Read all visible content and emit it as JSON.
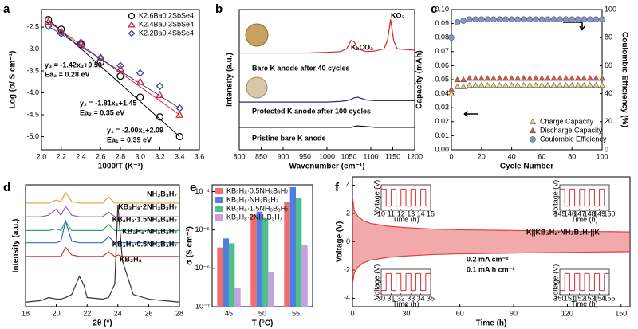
{
  "chart_data": [
    {
      "type": "scatter",
      "panel": "a",
      "xlabel": "1000/T (K⁻¹)",
      "ylabel": "Log (σ/ S cm⁻¹)",
      "x": [
        2.07,
        2.2,
        2.4,
        2.6,
        2.8,
        3.0,
        3.2,
        3.4
      ],
      "xlim": [
        2.0,
        3.6
      ],
      "xticks": [
        {
          "value": 2.0,
          "label": "2.0"
        },
        2.2,
        2.4,
        2.6,
        2.8,
        {
          "value": 3.0,
          "label": "3.0"
        },
        3.2,
        3.4,
        3.6
      ],
      "ylim": [
        -5.3,
        -2.1
      ],
      "yticks": [
        {
          "value": -5.0,
          "label": "-5.0"
        },
        -4.5,
        {
          "value": -4.0,
          "label": "-4.0"
        },
        -3.5,
        {
          "value": -3.0,
          "label": "-3.0"
        },
        -2.5
      ],
      "fit_lines": true,
      "legend": "upper right",
      "series": [
        {
          "name": "K2.6Ba0.2SbSe4",
          "color": "#000000",
          "marker": "circle",
          "values": [
            -2.33,
            -2.55,
            -2.9,
            -3.3,
            -3.62,
            -4.1,
            -4.55,
            -5.0
          ]
        },
        {
          "name": "K2.4Ba0.3SbSe4",
          "color": "#e02828",
          "marker": "triangle",
          "values": [
            -2.38,
            -2.6,
            -2.88,
            -3.2,
            -3.45,
            -3.75,
            -4.05,
            -4.5
          ]
        },
        {
          "name": "K2.2Ba0.4SbSe4",
          "color": "#3a48a0",
          "marker": "diamond",
          "values": [
            -2.48,
            -2.65,
            -2.85,
            -3.2,
            -3.38,
            -3.55,
            -3.85,
            -4.35
          ]
        }
      ],
      "annotations": [
        {
          "text": "y₃ = -1.42x₃+0.50",
          "color": "#3a48a0"
        },
        {
          "text": "Ea₃ = 0.28 eV",
          "color": "#3a48a0"
        },
        {
          "text": "y₂ = -1.81x₂+1.45",
          "color": "#e02828"
        },
        {
          "text": "Ea₂ = 0.35 eV",
          "color": "#e02828"
        },
        {
          "text": "y₁ = -2.00x₁+2.09",
          "color": "#000000"
        },
        {
          "text": "Ea₁ = 0.39 eV",
          "color": "#000000"
        }
      ]
    },
    {
      "type": "line",
      "panel": "b",
      "xlabel": "Wavenumber (cm⁻¹)",
      "ylabel": "Intensity (a.u.)",
      "x": [
        800,
        850,
        900,
        950,
        1000,
        1030,
        1045,
        1055,
        1062,
        1070,
        1090,
        1110,
        1130,
        1138,
        1145,
        1152,
        1160,
        1200
      ],
      "xlim": [
        800,
        1200
      ],
      "xticks": [
        800,
        850,
        900,
        950,
        1000,
        1050,
        1100,
        1150,
        1200
      ],
      "ylim": [
        0,
        10
      ],
      "series": [
        {
          "name": "Bare K anode after 40 cycles",
          "color": "#d42020",
          "values": [
            6.9,
            6.9,
            6.9,
            6.9,
            6.95,
            7.0,
            7.2,
            7.8,
            7.7,
            7.2,
            7.0,
            7.05,
            7.2,
            7.8,
            9.3,
            7.8,
            7.2,
            7.1
          ]
        },
        {
          "name": "Protected K anode after 100 cycles",
          "color": "#2a2a8a",
          "values": [
            3.4,
            3.4,
            3.4,
            3.4,
            3.4,
            3.45,
            3.5,
            3.6,
            3.7,
            3.75,
            3.55,
            3.5,
            3.5,
            3.5,
            3.5,
            3.5,
            3.5,
            3.5
          ]
        },
        {
          "name": "Pristine bare K anode",
          "color": "#000000",
          "values": [
            1.6,
            1.6,
            1.6,
            1.6,
            1.6,
            1.6,
            1.6,
            1.6,
            1.65,
            1.7,
            1.65,
            1.6,
            1.6,
            1.6,
            1.6,
            1.6,
            1.6,
            1.6
          ]
        }
      ],
      "annotations": [
        {
          "text": "K₂CO₃",
          "color": "#d42020"
        },
        {
          "text": "KO₂",
          "color": "#d42020"
        }
      ]
    },
    {
      "type": "scatter",
      "panel": "c",
      "xlabel": "Cycle Number",
      "ylabel": "Capacity (mAh)",
      "y2label": "Coulombic Efficiency (%)",
      "x": [
        0,
        4,
        8,
        12,
        16,
        20,
        24,
        28,
        32,
        36,
        40,
        44,
        48,
        52,
        56,
        60,
        64,
        68,
        72,
        76,
        80,
        84,
        88,
        92,
        96,
        100
      ],
      "xlim": [
        0,
        100
      ],
      "xticks": [
        0,
        20,
        40,
        60,
        80,
        100
      ],
      "ylim": [
        0,
        0.1
      ],
      "yticks": [
        {
          "value": 0,
          "label": "0.00"
        },
        {
          "value": 0.01,
          "label": "0.01"
        },
        {
          "value": 0.02,
          "label": "0.02"
        },
        {
          "value": 0.03,
          "label": "0.03"
        },
        {
          "value": 0.04,
          "label": "0.04"
        },
        {
          "value": 0.05,
          "label": "0.05"
        },
        {
          "value": 0.06,
          "label": "0.06"
        },
        {
          "value": 0.07,
          "label": "0.07"
        },
        {
          "value": 0.08,
          "label": "0.08"
        },
        {
          "value": 0.09,
          "label": "0.09"
        },
        {
          "value": 0.1,
          "label": "0.10"
        }
      ],
      "y2lim": [
        0,
        100
      ],
      "y2ticks": [
        0,
        20,
        40,
        60,
        80,
        100
      ],
      "legend": "lower right",
      "series": [
        {
          "name": "Charge Capacity",
          "color": "#f5d08a",
          "marker": "triangle",
          "values": [
            0.04,
            0.045,
            0.045,
            0.046,
            0.046,
            0.046,
            0.046,
            0.046,
            0.046,
            0.046,
            0.046,
            0.046,
            0.046,
            0.046,
            0.046,
            0.046,
            0.046,
            0.046,
            0.046,
            0.046,
            0.046,
            0.046,
            0.046,
            0.046,
            0.046,
            0.046
          ]
        },
        {
          "name": "Discharge Capacity",
          "color": "#e8553a",
          "marker": "triangle",
          "values": [
            0.043,
            0.05,
            0.05,
            0.051,
            0.051,
            0.051,
            0.051,
            0.051,
            0.051,
            0.051,
            0.051,
            0.051,
            0.051,
            0.051,
            0.051,
            0.051,
            0.051,
            0.051,
            0.051,
            0.051,
            0.051,
            0.051,
            0.051,
            0.051,
            0.051,
            0.051
          ]
        },
        {
          "name": "Coulombic Efficiency",
          "color": "#7f97c9",
          "marker": "circle",
          "axis": "y2",
          "values": [
            80,
            91,
            92,
            93,
            93,
            93,
            93,
            93,
            93,
            93,
            93,
            93,
            93,
            93,
            93,
            93,
            93,
            93,
            93,
            93,
            93,
            93,
            93,
            93,
            93,
            93
          ]
        }
      ]
    },
    {
      "type": "line",
      "panel": "d",
      "xlabel": "2θ (°)",
      "ylabel": "Intensity (a.u.)",
      "x": [
        18,
        19,
        19.5,
        20,
        20.3,
        20.6,
        21,
        21.5,
        21.8,
        22,
        23,
        23.4,
        23.8,
        24,
        24.3,
        25,
        26,
        27,
        28
      ],
      "xlim": [
        18,
        28
      ],
      "xticks": [
        18,
        20,
        22,
        24,
        26,
        28
      ],
      "ylim": [
        0,
        8
      ],
      "series": [
        {
          "name": "NH₃B₃H₇",
          "color": "#e8a030",
          "values": [
            6.8,
            6.8,
            6.8,
            7.0,
            6.9,
            7.5,
            6.9,
            6.8,
            6.8,
            6.8,
            6.8,
            7.2,
            6.8,
            6.8,
            6.8,
            6.8,
            6.8,
            6.8,
            6.8
          ]
        },
        {
          "name": "KB₃H₈·2NH₃B₃H₇",
          "color": "#9b59b6",
          "values": [
            5.9,
            5.9,
            6.0,
            6.4,
            6.0,
            6.6,
            6.0,
            5.9,
            5.9,
            5.9,
            5.9,
            6.2,
            5.9,
            5.9,
            5.9,
            5.9,
            5.9,
            5.9,
            5.9
          ]
        },
        {
          "name": "KB₃H₈·1.5NH₃B₃H₇",
          "color": "#27ae60",
          "values": [
            5.0,
            5.0,
            5.0,
            5.1,
            5.0,
            5.6,
            5.0,
            5.0,
            5.0,
            5.0,
            5.0,
            5.4,
            5.0,
            5.0,
            5.0,
            5.0,
            5.0,
            5.0,
            5.0
          ]
        },
        {
          "name": "KB₃H₈·NH₃B₃H₇",
          "color": "#2e6fd0",
          "values": [
            4.2,
            4.2,
            4.2,
            4.2,
            4.3,
            5.6,
            4.3,
            4.2,
            4.2,
            4.2,
            4.2,
            4.6,
            4.2,
            4.2,
            4.2,
            4.2,
            4.2,
            4.2,
            4.2
          ]
        },
        {
          "name": "KB₃H₈·0.5NH₃B₃H₇",
          "color": "#e03030",
          "values": [
            3.3,
            3.3,
            3.3,
            3.3,
            3.3,
            3.9,
            3.4,
            3.3,
            3.3,
            3.3,
            3.3,
            3.6,
            3.3,
            3.4,
            3.3,
            3.3,
            3.3,
            3.3,
            3.3
          ]
        },
        {
          "name": "KB₃H₈",
          "color": "#333333",
          "values": [
            0.3,
            0.4,
            0.6,
            0.5,
            0.5,
            0.6,
            0.8,
            2.0,
            1.4,
            0.6,
            0.5,
            0.6,
            1.5,
            6.7,
            3.0,
            0.8,
            0.5,
            0.4,
            0.3
          ]
        }
      ]
    },
    {
      "type": "bar",
      "panel": "e",
      "xlabel": "T (°C)",
      "ylabel": "σ (S cm⁻¹)",
      "log_y": true,
      "categories": [
        "45",
        "50",
        "55"
      ],
      "ylim": [
        1e-07,
        0.00015
      ],
      "yticks": [
        {
          "value": 1e-07,
          "label": "10⁻⁷"
        },
        {
          "value": 1e-06,
          "label": "10⁻⁶"
        },
        {
          "value": 1e-05,
          "label": "10⁻⁵"
        },
        {
          "value": 0.0001,
          "label": "10⁻⁴"
        }
      ],
      "legend": "upper left",
      "series": [
        {
          "name": "KB₃H₈·0.5NH₃B₃H₇",
          "color": "#f26d6d",
          "values": [
            3.5e-06,
            2.5e-05,
            5.5e-05
          ]
        },
        {
          "name": "KB₃H₈·NH₃B₃H₇",
          "color": "#4f7fe0",
          "values": [
            6e-06,
            3e-05,
            0.00013
          ]
        },
        {
          "name": "KB₃H₈·1.5NH₃B₃H₇",
          "color": "#4fc08d",
          "values": [
            4.5e-06,
            2e-05,
            7e-05
          ]
        },
        {
          "name": "KB₃H₈·2NH₃B₃H₇",
          "color": "#c7a0e0",
          "values": [
            3e-07,
            8e-07,
            4e-06
          ]
        }
      ]
    },
    {
      "type": "line",
      "panel": "f",
      "xlabel": "Time (h)",
      "ylabel": "Voltage (V)",
      "fill_between": true,
      "x": [
        0,
        1,
        3,
        6,
        10,
        20,
        30,
        45,
        60,
        90,
        120,
        155
      ],
      "xlim": [
        0,
        155
      ],
      "xticks": [
        0,
        30,
        60,
        90,
        120,
        150
      ],
      "ylim": [
        -4.6,
        4.6
      ],
      "yticks": [
        -4,
        -2,
        0,
        2,
        4
      ],
      "series": [
        {
          "color": "#e04040",
          "values": [
            3.2,
            2.2,
            1.8,
            1.5,
            1.3,
            1.1,
            1.0,
            0.9,
            0.85,
            0.8,
            0.75,
            0.7
          ]
        },
        {
          "color": "#e04040",
          "values": [
            -3.0,
            -2.2,
            -1.8,
            -1.5,
            -1.3,
            -1.1,
            -1.0,
            -0.9,
            -0.85,
            -0.8,
            -0.75,
            -0.7
          ]
        }
      ],
      "annotations": [
        {
          "text": "K||KB₃H₈·NH₃B₃H₇||K",
          "color": "#000000"
        },
        {
          "text": "0.2 mA cm⁻²",
          "color": "#000000"
        },
        {
          "text": "0.1 mA h cm⁻²",
          "color": "#000000"
        }
      ],
      "insets": [
        {
          "xlabel": "Time (h)",
          "ylabel": "Voltage (V)",
          "xlim": [
            10,
            15
          ],
          "xticks": [
            10,
            11,
            12,
            13,
            14,
            15
          ],
          "ylim": [
            -1.5,
            1.5
          ],
          "x": [
            10,
            10.5,
            11,
            11.5,
            12,
            12.5,
            13,
            13.5,
            14,
            14.5
          ],
          "values": [
            1,
            -1,
            1,
            -1,
            1,
            -1,
            1,
            -1,
            1,
            -1
          ]
        },
        {
          "xlabel": "Time (h)",
          "ylabel": "Voltage (V)",
          "xlim": [
            145,
            150
          ],
          "xticks": [
            145,
            146,
            147,
            148,
            149,
            150
          ],
          "ylim": [
            -1.5,
            1.5
          ],
          "x": [
            145,
            145.5,
            146,
            146.5,
            147,
            147.5,
            148,
            148.5,
            149,
            149.5
          ],
          "values": [
            1,
            -1,
            1,
            -1,
            1,
            -1,
            1,
            -1,
            1,
            -1
          ]
        },
        {
          "xlabel": "Time (h)",
          "ylabel": "Voltage (V)",
          "xlim": [
            30,
            35
          ],
          "xticks": [
            30,
            31,
            32,
            33,
            34,
            35
          ],
          "ylim": [
            -1.5,
            1.5
          ],
          "x": [
            30,
            30.5,
            31,
            31.5,
            32,
            32.5,
            33,
            33.5,
            34,
            34.5
          ],
          "values": [
            -1,
            1,
            -1,
            1,
            -1,
            1,
            -1,
            1,
            -1,
            1
          ]
        },
        {
          "xlabel": "Time (h)",
          "ylabel": "Voltage (V)",
          "xlim": [
            150,
            155
          ],
          "xticks": [
            150,
            151,
            152,
            153,
            154,
            155
          ],
          "ylim": [
            -1.5,
            1.5
          ],
          "x": [
            150,
            150.5,
            151,
            151.5,
            152,
            152.5,
            153,
            153.5,
            154,
            154.5
          ],
          "values": [
            -1,
            1,
            -1,
            1,
            -1,
            1,
            -1,
            1,
            -1,
            1
          ]
        }
      ]
    }
  ]
}
